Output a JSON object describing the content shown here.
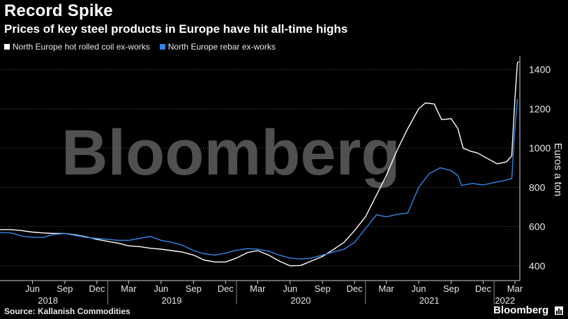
{
  "header": {
    "title": "Record Spike",
    "subtitle": "Prices of key steel products in Europe have hit all-time highs"
  },
  "footer": {
    "source": "Source: Kallanish Commodities",
    "brand": "Bloomberg"
  },
  "watermark": "Bloomberg",
  "colors": {
    "hrc": "#ffffff",
    "rebar": "#2f86e6",
    "background": "#000000",
    "grid": "#555555"
  },
  "chart_data": {
    "type": "line",
    "ylabel": "Euros a ton",
    "ylim": [
      325,
      1470
    ],
    "yticks": [
      400,
      600,
      800,
      1000,
      1200,
      1400
    ],
    "x_range": [
      "2018-03-01",
      "2022-03-15"
    ],
    "x_month_ticks": [
      {
        "date": "2018-06-01",
        "label": "Jun"
      },
      {
        "date": "2018-09-01",
        "label": "Sep"
      },
      {
        "date": "2018-12-01",
        "label": "Dec"
      },
      {
        "date": "2019-03-01",
        "label": "Mar"
      },
      {
        "date": "2019-06-01",
        "label": "Jun"
      },
      {
        "date": "2019-09-01",
        "label": "Sep"
      },
      {
        "date": "2019-12-01",
        "label": "Dec"
      },
      {
        "date": "2020-03-01",
        "label": "Mar"
      },
      {
        "date": "2020-06-01",
        "label": "Jun"
      },
      {
        "date": "2020-09-01",
        "label": "Sep"
      },
      {
        "date": "2020-12-01",
        "label": "Dec"
      },
      {
        "date": "2021-03-01",
        "label": "Mar"
      },
      {
        "date": "2021-06-01",
        "label": "Jun"
      },
      {
        "date": "2021-09-01",
        "label": "Sep"
      },
      {
        "date": "2021-12-01",
        "label": "Dec"
      },
      {
        "date": "2022-03-01",
        "label": "Mar"
      }
    ],
    "x_year_labels": [
      {
        "date": "2018-07-15",
        "label": "2018"
      },
      {
        "date": "2019-07-01",
        "label": "2019"
      },
      {
        "date": "2020-07-01",
        "label": "2020"
      },
      {
        "date": "2021-07-01",
        "label": "2021"
      },
      {
        "date": "2022-02-01",
        "label": "2022"
      }
    ],
    "x_year_dividers": [
      "2019-01-01",
      "2020-01-01",
      "2021-01-01",
      "2022-01-01"
    ],
    "series": [
      {
        "name": "North Europe hot rolled coil ex-works",
        "color": "#ffffff",
        "points": [
          [
            "2018-03-01",
            585
          ],
          [
            "2018-04-01",
            585
          ],
          [
            "2018-05-01",
            580
          ],
          [
            "2018-06-01",
            572
          ],
          [
            "2018-07-01",
            568
          ],
          [
            "2018-08-01",
            565
          ],
          [
            "2018-09-01",
            565
          ],
          [
            "2018-10-01",
            558
          ],
          [
            "2018-11-01",
            548
          ],
          [
            "2018-12-01",
            535
          ],
          [
            "2019-01-01",
            525
          ],
          [
            "2019-02-01",
            515
          ],
          [
            "2019-03-01",
            502
          ],
          [
            "2019-04-01",
            498
          ],
          [
            "2019-05-01",
            490
          ],
          [
            "2019-06-01",
            485
          ],
          [
            "2019-07-01",
            478
          ],
          [
            "2019-08-01",
            470
          ],
          [
            "2019-09-01",
            455
          ],
          [
            "2019-10-01",
            430
          ],
          [
            "2019-11-01",
            420
          ],
          [
            "2019-12-01",
            420
          ],
          [
            "2020-01-01",
            440
          ],
          [
            "2020-02-01",
            468
          ],
          [
            "2020-03-01",
            478
          ],
          [
            "2020-04-01",
            455
          ],
          [
            "2020-05-01",
            425
          ],
          [
            "2020-06-01",
            400
          ],
          [
            "2020-07-01",
            402
          ],
          [
            "2020-08-01",
            425
          ],
          [
            "2020-09-01",
            448
          ],
          [
            "2020-10-01",
            482
          ],
          [
            "2020-11-01",
            520
          ],
          [
            "2020-12-01",
            580
          ],
          [
            "2021-01-01",
            650
          ],
          [
            "2021-02-01",
            760
          ],
          [
            "2021-03-01",
            860
          ],
          [
            "2021-04-01",
            990
          ],
          [
            "2021-05-01",
            1100
          ],
          [
            "2021-06-01",
            1200
          ],
          [
            "2021-06-20",
            1230
          ],
          [
            "2021-07-15",
            1225
          ],
          [
            "2021-08-05",
            1145
          ],
          [
            "2021-09-01",
            1150
          ],
          [
            "2021-09-20",
            1100
          ],
          [
            "2021-10-05",
            1000
          ],
          [
            "2021-10-25",
            985
          ],
          [
            "2021-11-15",
            975
          ],
          [
            "2021-12-10",
            950
          ],
          [
            "2022-01-10",
            920
          ],
          [
            "2022-02-05",
            930
          ],
          [
            "2022-02-20",
            960
          ],
          [
            "2022-03-01",
            1250
          ],
          [
            "2022-03-08",
            1435
          ],
          [
            "2022-03-12",
            1440
          ]
        ]
      },
      {
        "name": "North Europe rebar ex-works",
        "color": "#2f86e6",
        "points": [
          [
            "2018-03-01",
            570
          ],
          [
            "2018-04-01",
            568
          ],
          [
            "2018-05-01",
            552
          ],
          [
            "2018-06-01",
            545
          ],
          [
            "2018-07-01",
            545
          ],
          [
            "2018-08-01",
            560
          ],
          [
            "2018-09-01",
            565
          ],
          [
            "2018-10-01",
            555
          ],
          [
            "2018-11-01",
            545
          ],
          [
            "2018-12-01",
            540
          ],
          [
            "2019-01-01",
            535
          ],
          [
            "2019-02-01",
            530
          ],
          [
            "2019-03-01",
            530
          ],
          [
            "2019-04-01",
            540
          ],
          [
            "2019-05-01",
            550
          ],
          [
            "2019-06-01",
            530
          ],
          [
            "2019-07-01",
            520
          ],
          [
            "2019-08-01",
            505
          ],
          [
            "2019-09-01",
            478
          ],
          [
            "2019-10-01",
            462
          ],
          [
            "2019-11-01",
            455
          ],
          [
            "2019-12-01",
            465
          ],
          [
            "2020-01-01",
            480
          ],
          [
            "2020-02-01",
            488
          ],
          [
            "2020-03-01",
            485
          ],
          [
            "2020-04-01",
            475
          ],
          [
            "2020-05-01",
            455
          ],
          [
            "2020-06-01",
            440
          ],
          [
            "2020-07-01",
            435
          ],
          [
            "2020-08-01",
            440
          ],
          [
            "2020-09-01",
            455
          ],
          [
            "2020-10-01",
            470
          ],
          [
            "2020-11-01",
            485
          ],
          [
            "2020-12-01",
            520
          ],
          [
            "2021-01-01",
            590
          ],
          [
            "2021-02-01",
            660
          ],
          [
            "2021-03-01",
            650
          ],
          [
            "2021-04-01",
            662
          ],
          [
            "2021-05-01",
            670
          ],
          [
            "2021-06-01",
            800
          ],
          [
            "2021-07-01",
            870
          ],
          [
            "2021-08-01",
            900
          ],
          [
            "2021-09-01",
            885
          ],
          [
            "2021-09-20",
            860
          ],
          [
            "2021-10-01",
            810
          ],
          [
            "2021-11-01",
            820
          ],
          [
            "2021-12-01",
            812
          ],
          [
            "2022-01-01",
            825
          ],
          [
            "2022-02-01",
            835
          ],
          [
            "2022-02-20",
            845
          ],
          [
            "2022-03-01",
            1100
          ],
          [
            "2022-03-08",
            1250
          ]
        ]
      }
    ]
  }
}
